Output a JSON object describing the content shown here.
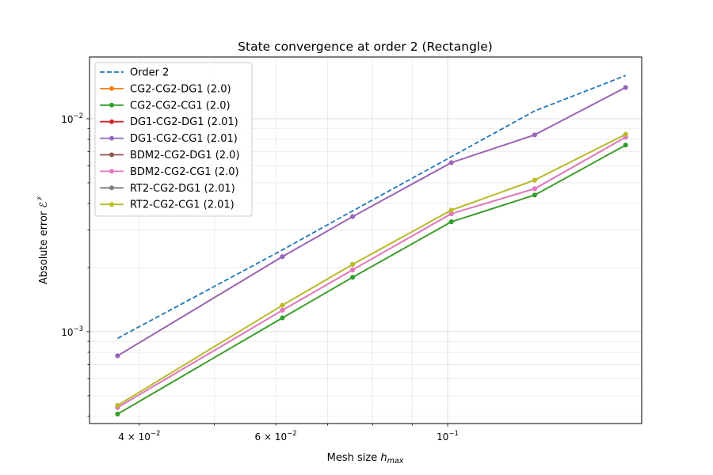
{
  "chart_data": {
    "type": "line",
    "title": "State convergence at order 2 (Rectangle)",
    "xlabel": "Mesh size h_max",
    "ylabel": "Absolute error ℰ^𝒱",
    "xscale": "log",
    "yscale": "log",
    "xlim": [
      0.0345,
      0.178
    ],
    "ylim": [
      0.00037,
      0.0195
    ],
    "grid": "both (major and minor)",
    "legend_position": "upper-left",
    "x_tick_labels": [
      {
        "value": 0.04,
        "mantissa": "4",
        "exponent": "−2"
      },
      {
        "value": 0.06,
        "mantissa": "6",
        "exponent": "−2"
      },
      {
        "value": 0.1,
        "mantissa": "",
        "exponent": "−1"
      }
    ],
    "y_tick_labels": [
      {
        "value": 0.001,
        "exponent": "−3"
      },
      {
        "value": 0.01,
        "exponent": "−2"
      }
    ],
    "x": [
      0.0375,
      0.0612,
      0.0754,
      0.1011,
      0.1295,
      0.1697
    ],
    "series": [
      {
        "name": "Order 2",
        "color": "#1f77b4",
        "style": "dashed",
        "marker": "none",
        "values": [
          0.00093,
          0.00242,
          0.00369,
          0.00663,
          0.01088,
          0.01596
        ]
      },
      {
        "name": "CG2-CG2-DG1 (2.0)",
        "color": "#ff7f0e",
        "style": "solid",
        "marker": "circle",
        "values": [
          0.00041,
          0.00116,
          0.0018,
          0.00328,
          0.00438,
          0.00752
        ]
      },
      {
        "name": "CG2-CG2-CG1 (2.0)",
        "color": "#2ca02c",
        "style": "solid",
        "marker": "circle",
        "values": [
          0.00041,
          0.00116,
          0.0018,
          0.00328,
          0.00438,
          0.00752
        ]
      },
      {
        "name": "DG1-CG2-DG1 (2.01)",
        "color": "#d62728",
        "style": "solid",
        "marker": "circle",
        "values": [
          0.00077,
          0.00225,
          0.00347,
          0.00622,
          0.0084,
          0.01403
        ]
      },
      {
        "name": "DG1-CG2-CG1 (2.01)",
        "color": "#9467bd",
        "style": "solid",
        "marker": "circle",
        "values": [
          0.00077,
          0.00225,
          0.00347,
          0.00622,
          0.0084,
          0.01403
        ]
      },
      {
        "name": "BDM2-CG2-DG1 (2.0)",
        "color": "#8c564b",
        "style": "solid",
        "marker": "circle",
        "values": [
          0.00044,
          0.00126,
          0.00195,
          0.00358,
          0.00469,
          0.00819
        ]
      },
      {
        "name": "BDM2-CG2-CG1 (2.0)",
        "color": "#e377c2",
        "style": "solid",
        "marker": "circle",
        "values": [
          0.00044,
          0.00126,
          0.00195,
          0.00358,
          0.00469,
          0.00819
        ]
      },
      {
        "name": "RT2-CG2-DG1 (2.01)",
        "color": "#7f7f7f",
        "style": "solid",
        "marker": "circle",
        "values": [
          0.00045,
          0.00133,
          0.00207,
          0.00372,
          0.00515,
          0.00845
        ]
      },
      {
        "name": "RT2-CG2-CG1 (2.01)",
        "color": "#bcbd22",
        "style": "solid",
        "marker": "circle",
        "values": [
          0.00045,
          0.00133,
          0.00207,
          0.00372,
          0.00515,
          0.00845
        ]
      }
    ]
  }
}
